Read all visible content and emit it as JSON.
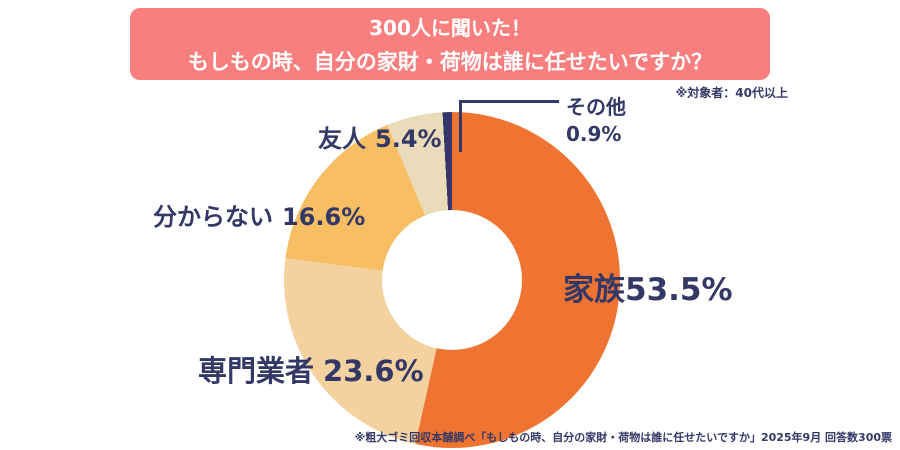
{
  "title": {
    "line1": "300人に聞いた！",
    "line2": "もしもの時、自分の家財・荷物は誰に任せたいですか？",
    "audience_note": "※対象者：40代以上"
  },
  "footer": {
    "source_note": "※粗大ゴミ回収本舗調べ「もしもの時、自分の家財・荷物は誰に任せたいですか」2025年9月 回答数300票"
  },
  "colors": {
    "banner": "#F97E7E",
    "label_text": "#333866",
    "leader_line": "#333866"
  },
  "chart_data": {
    "type": "pie",
    "donut": true,
    "start_angle_deg": 0,
    "direction": "clockwise",
    "title": "もしもの時、自分の家財・荷物は誰に任せたいですか？（300人・40代以上）",
    "segments": [
      {
        "label": "家族",
        "value": 53.5,
        "pct": "53.5%",
        "color": "#EF7432"
      },
      {
        "label": "専門業者",
        "value": 23.6,
        "pct": "23.6%",
        "color": "#F4D2A0"
      },
      {
        "label": "分からない",
        "value": 16.6,
        "pct": "16.6%",
        "color": "#F7BE63"
      },
      {
        "label": "友人",
        "value": 5.4,
        "pct": "5.4%",
        "color": "#EADCBA"
      },
      {
        "label": "その他",
        "value": 0.9,
        "pct": "0.9%",
        "color": "#32366B"
      }
    ]
  }
}
